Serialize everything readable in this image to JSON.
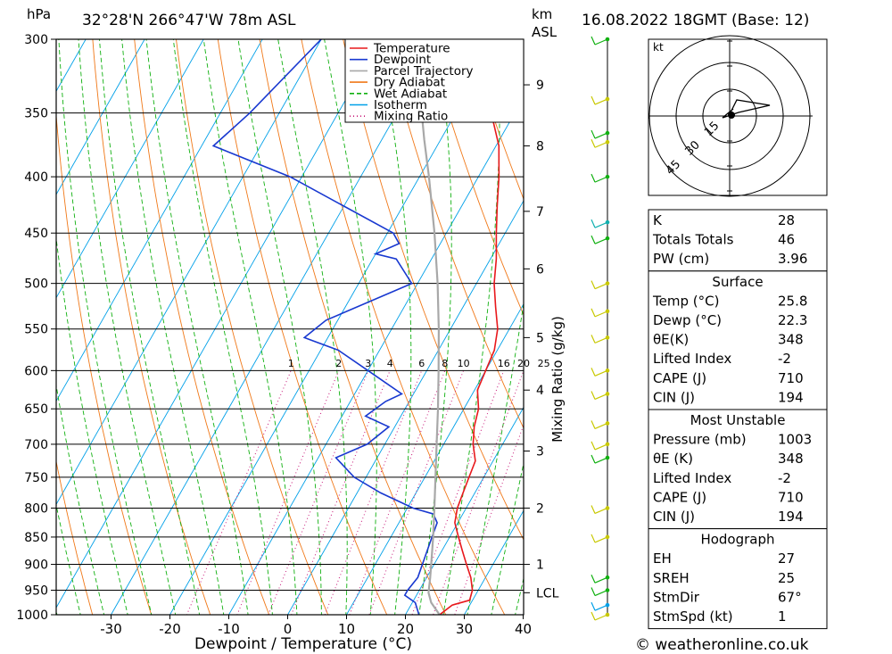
{
  "header": {
    "pressure_unit": "hPa",
    "location": "32°28'N  266°47'W  78m  ASL",
    "km_label": "km",
    "asl_label": "ASL",
    "datetime": "16.08.2022  18GMT  (Base: 12)"
  },
  "footer": {
    "copyright": "© weatheronline.co.uk"
  },
  "chart_data": {
    "type": "skew-t log-p sounding",
    "xlabel": "Dewpoint / Temperature (°C)",
    "ylabel_right": "Mixing Ratio (g/kg)",
    "x_ticks": [
      -30,
      -20,
      -10,
      0,
      10,
      20,
      30,
      40
    ],
    "x_range": [
      -39,
      40
    ],
    "pressure_ticks": [
      300,
      350,
      400,
      450,
      500,
      550,
      600,
      650,
      700,
      750,
      800,
      850,
      900,
      950,
      1000
    ],
    "pressure_range": [
      300,
      1000
    ],
    "height_ticks": [
      {
        "label": "9",
        "p": 330
      },
      {
        "label": "8",
        "p": 375
      },
      {
        "label": "7",
        "p": 430
      },
      {
        "label": "6",
        "p": 485
      },
      {
        "label": "5",
        "p": 560
      },
      {
        "label": "4",
        "p": 625
      },
      {
        "label": "3",
        "p": 710
      },
      {
        "label": "2",
        "p": 800
      },
      {
        "label": "1",
        "p": 900
      },
      {
        "label": "LCL",
        "p": 955
      }
    ],
    "mixing_ratio_labels": [
      "1",
      "2",
      "3",
      "4",
      "6",
      "8",
      "10",
      "16",
      "20",
      "25"
    ],
    "mixing_ratio_values": [
      1,
      2,
      3,
      4,
      6,
      8,
      10,
      16,
      20,
      25
    ],
    "legend": [
      {
        "name": "Temperature",
        "color": "#e8181c",
        "dash": "none"
      },
      {
        "name": "Dewpoint",
        "color": "#1838d0",
        "dash": "none"
      },
      {
        "name": "Parcel Trajectory",
        "color": "#a8a8a8",
        "dash": "none"
      },
      {
        "name": "Dry Adiabat",
        "color": "#f07818",
        "dash": "none"
      },
      {
        "name": "Wet Adiabat",
        "color": "#10b010",
        "dash": "5,3"
      },
      {
        "name": "Isotherm",
        "color": "#00a0e8",
        "dash": "none"
      },
      {
        "name": "Mixing Ratio",
        "color": "#c81878",
        "dash": "1,3"
      }
    ],
    "series": [
      {
        "name": "Temperature",
        "color": "#e8181c",
        "points": [
          {
            "p": 1000,
            "t": 25.8
          },
          {
            "p": 980,
            "t": 27.0
          },
          {
            "p": 970,
            "t": 29.5
          },
          {
            "p": 950,
            "t": 29.0
          },
          {
            "p": 925,
            "t": 27.5
          },
          {
            "p": 900,
            "t": 25.5
          },
          {
            "p": 875,
            "t": 23.5
          },
          {
            "p": 850,
            "t": 21.5
          },
          {
            "p": 825,
            "t": 19.5
          },
          {
            "p": 800,
            "t": 18.5
          },
          {
            "p": 775,
            "t": 18.0
          },
          {
            "p": 750,
            "t": 17.5
          },
          {
            "p": 725,
            "t": 17.0
          },
          {
            "p": 700,
            "t": 15.0
          },
          {
            "p": 675,
            "t": 13.5
          },
          {
            "p": 650,
            "t": 12.5
          },
          {
            "p": 625,
            "t": 10.5
          },
          {
            "p": 600,
            "t": 10.0
          },
          {
            "p": 575,
            "t": 9.5
          },
          {
            "p": 550,
            "t": 8.0
          },
          {
            "p": 525,
            "t": 5.5
          },
          {
            "p": 500,
            "t": 3.0
          },
          {
            "p": 475,
            "t": 1.0
          },
          {
            "p": 450,
            "t": -1.5
          },
          {
            "p": 425,
            "t": -4.0
          },
          {
            "p": 400,
            "t": -6.5
          },
          {
            "p": 375,
            "t": -9.5
          },
          {
            "p": 350,
            "t": -14.0
          },
          {
            "p": 325,
            "t": -18.0
          },
          {
            "p": 300,
            "t": -21.0
          }
        ]
      },
      {
        "name": "Dewpoint",
        "color": "#1838d0",
        "points": [
          {
            "p": 1000,
            "t": 22.3
          },
          {
            "p": 975,
            "t": 20.5
          },
          {
            "p": 960,
            "t": 18.0
          },
          {
            "p": 950,
            "t": 18.0
          },
          {
            "p": 925,
            "t": 18.5
          },
          {
            "p": 900,
            "t": 18.0
          },
          {
            "p": 875,
            "t": 17.5
          },
          {
            "p": 850,
            "t": 17.0
          },
          {
            "p": 825,
            "t": 16.5
          },
          {
            "p": 810,
            "t": 15.0
          },
          {
            "p": 800,
            "t": 11.0
          },
          {
            "p": 775,
            "t": 4.0
          },
          {
            "p": 750,
            "t": -2.0
          },
          {
            "p": 720,
            "t": -7.0
          },
          {
            "p": 700,
            "t": -3.0
          },
          {
            "p": 675,
            "t": -1.0
          },
          {
            "p": 660,
            "t": -6.0
          },
          {
            "p": 640,
            "t": -4.0
          },
          {
            "p": 630,
            "t": -2.0
          },
          {
            "p": 600,
            "t": -10.0
          },
          {
            "p": 575,
            "t": -17.0
          },
          {
            "p": 560,
            "t": -24.0
          },
          {
            "p": 540,
            "t": -22.0
          },
          {
            "p": 500,
            "t": -11.0
          },
          {
            "p": 475,
            "t": -16.0
          },
          {
            "p": 470,
            "t": -20.0
          },
          {
            "p": 460,
            "t": -17.0
          },
          {
            "p": 450,
            "t": -19.0
          },
          {
            "p": 400,
            "t": -42.0
          },
          {
            "p": 375,
            "t": -58.0
          },
          {
            "p": 350,
            "t": -55.0
          },
          {
            "p": 300,
            "t": -50.0
          }
        ]
      },
      {
        "name": "Parcel Trajectory",
        "color": "#a8a8a8",
        "points": [
          {
            "p": 1000,
            "t": 25.8
          },
          {
            "p": 975,
            "t": 23.2
          },
          {
            "p": 955,
            "t": 21.8
          },
          {
            "p": 925,
            "t": 20.6
          },
          {
            "p": 900,
            "t": 19.5
          },
          {
            "p": 850,
            "t": 17.2
          },
          {
            "p": 800,
            "t": 14.6
          },
          {
            "p": 750,
            "t": 11.8
          },
          {
            "p": 700,
            "t": 8.8
          },
          {
            "p": 650,
            "t": 5.6
          },
          {
            "p": 600,
            "t": 2.0
          },
          {
            "p": 550,
            "t": -2.0
          },
          {
            "p": 500,
            "t": -6.6
          },
          {
            "p": 450,
            "t": -12.0
          },
          {
            "p": 400,
            "t": -18.4
          },
          {
            "p": 370,
            "t": -22.8
          },
          {
            "p": 350,
            "t": -25.8
          }
        ]
      }
    ],
    "hodograph": {
      "unit_label": "kt",
      "ring_labels": [
        "15",
        "30",
        "45"
      ]
    },
    "indices": {
      "general": [
        {
          "label": "K",
          "value": "28"
        },
        {
          "label": "Totals Totals",
          "value": "46"
        },
        {
          "label": "PW (cm)",
          "value": "3.96"
        }
      ],
      "surface": {
        "title": "Surface",
        "rows": [
          {
            "label": "Temp (°C)",
            "value": "25.8"
          },
          {
            "label": "Dewp (°C)",
            "value": "22.3"
          },
          {
            "label": "θE(K)",
            "value": "348"
          },
          {
            "label": "Lifted Index",
            "value": "-2"
          },
          {
            "label": "CAPE (J)",
            "value": "710"
          },
          {
            "label": "CIN (J)",
            "value": "194"
          }
        ]
      },
      "most_unstable": {
        "title": "Most Unstable",
        "rows": [
          {
            "label": "Pressure (mb)",
            "value": "1003"
          },
          {
            "label": "θE (K)",
            "value": "348"
          },
          {
            "label": "Lifted Index",
            "value": "-2"
          },
          {
            "label": "CAPE (J)",
            "value": "710"
          },
          {
            "label": "CIN (J)",
            "value": "194"
          }
        ]
      },
      "hodograph_params": {
        "title": "Hodograph",
        "rows": [
          {
            "label": "EH",
            "value": "27"
          },
          {
            "label": "SREH",
            "value": "25"
          },
          {
            "label": "StmDir",
            "value": "67°"
          },
          {
            "label": "StmSpd (kt)",
            "value": "1"
          }
        ]
      }
    }
  }
}
